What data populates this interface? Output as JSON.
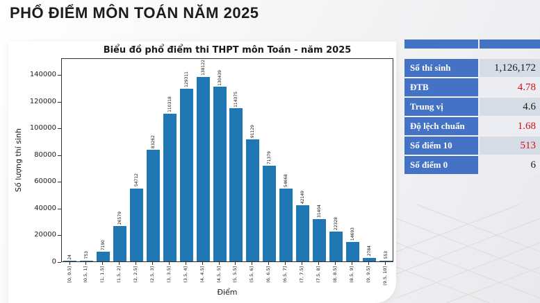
{
  "page": {
    "title": "PHỔ ĐIỂM MÔN TOÁN NĂM 2025"
  },
  "chart_data": {
    "type": "bar",
    "title": "Biểu đồ phổ điểm thi THPT môn Toán - năm 2025",
    "xlabel": "Điểm",
    "ylabel": "Số lượng thí sinh",
    "categories": [
      "[0, 0.5]",
      "(0.5, 1]",
      "(1, 1.5]",
      "(1.5, 2]",
      "(2, 2.5]",
      "(2.5, 3]",
      "(3, 3.5]",
      "(3.5, 4]",
      "(4, 4.5]",
      "(4.5, 5]",
      "(5, 5.5]",
      "(5.5, 6]",
      "(6, 6.5]",
      "(6.5, 7]",
      "(7, 7.5]",
      "(7.5, 8]",
      "(8, 8.5]",
      "(8.5, 9]",
      "(9, 9.5]",
      "(9.5, 10]"
    ],
    "values": [
      24,
      753,
      7190,
      26579,
      54712,
      83262,
      110318,
      129311,
      138122,
      130439,
      114375,
      91129,
      71379,
      54668,
      42149,
      31404,
      22328,
      14693,
      2784,
      553
    ],
    "yticks": [
      0,
      20000,
      40000,
      60000,
      80000,
      100000,
      120000,
      140000
    ],
    "ylim": [
      0,
      152444
    ],
    "bar_color": "#1f77b4",
    "grid": false,
    "legend": null
  },
  "stats_table": {
    "header_color": "#4472C4",
    "label_color": "#4472C4",
    "band_colors": [
      "#D6DCE5",
      "#EBEDF3"
    ],
    "rows": [
      {
        "label": "Số thí sinh",
        "value": "1,126,172",
        "value_color": "#1a1a1a"
      },
      {
        "label": "ĐTB",
        "value": "4.78",
        "value_color": "#d40f0f"
      },
      {
        "label": "Trung vị",
        "value": "4.6",
        "value_color": "#1a1a1a"
      },
      {
        "label": "Độ lệch chuẩn",
        "value": "1.68",
        "value_color": "#d40f0f"
      },
      {
        "label": "Số điểm 10",
        "value": "513",
        "value_color": "#d40f0f"
      },
      {
        "label": "Số điểm 0",
        "value": "6",
        "value_color": "#1a1a1a"
      }
    ]
  }
}
